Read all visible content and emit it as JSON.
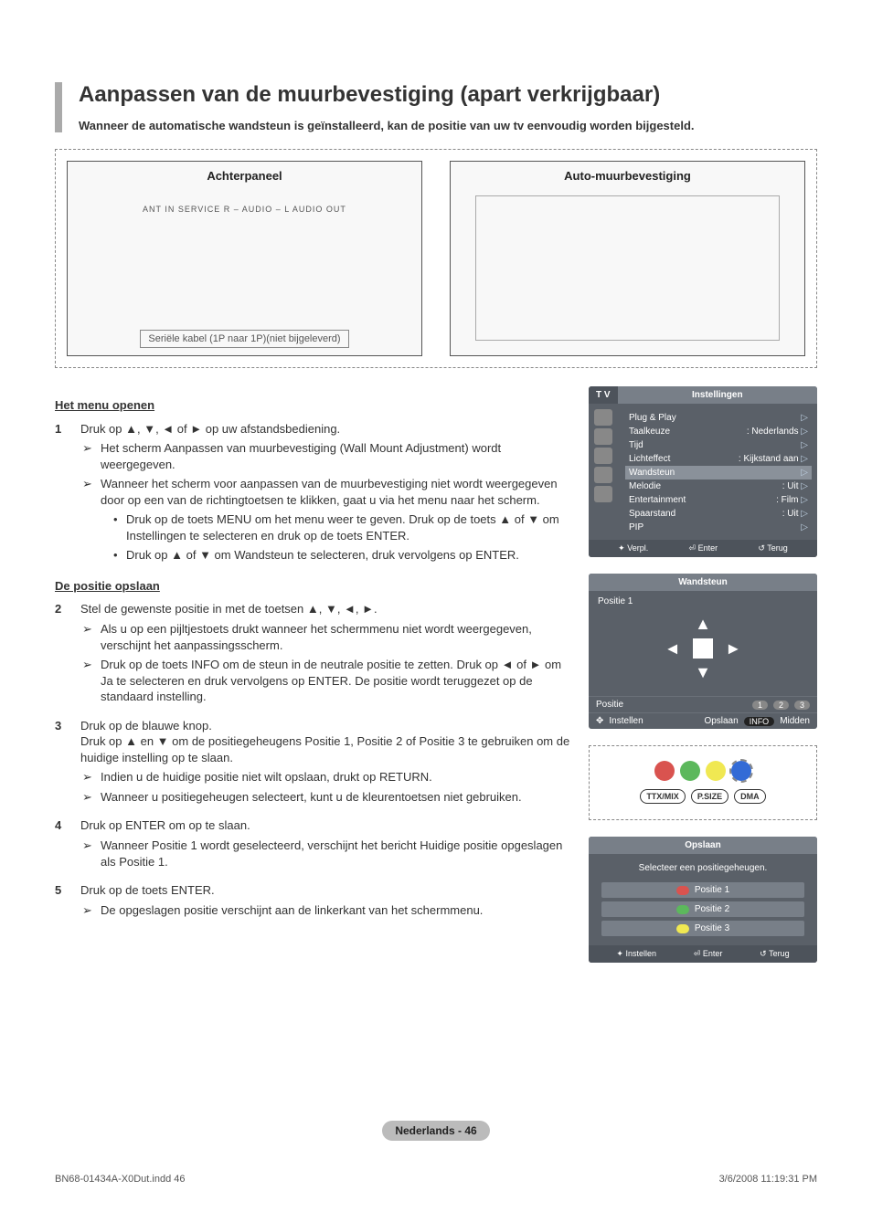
{
  "title": "Aanpassen van de muurbevestiging (apart verkrijgbaar)",
  "subtitle": "Wanneer de automatische wandsteun is geïnstalleerd, kan de positie van uw tv eenvoudig worden bijgesteld.",
  "diagram": {
    "left_label": "Achterpaneel",
    "left_ports": "ANT IN   SERVICE   R – AUDIO – L   AUDIO OUT",
    "right_label": "Auto-muurbevestiging",
    "cable_note": "Seriële kabel (1P naar 1P)(niet bijgeleverd)"
  },
  "sec1_hdr": "Het menu openen",
  "step1": {
    "num": "1",
    "text": "Druk op ▲, ▼, ◄ of ► op uw afstandsbediening.",
    "sub1": "Het scherm Aanpassen van muurbevestiging (Wall Mount Adjustment) wordt weergegeven.",
    "sub2": "Wanneer het scherm voor aanpassen van de muurbevestiging niet wordt weergegeven door op een van de richtingtoetsen te klikken, gaat u via het menu naar het scherm.",
    "b1": "Druk op de toets MENU om het menu weer te geven. Druk op de toets ▲ of ▼ om Instellingen te selecteren en druk op de toets ENTER.",
    "b2": "Druk op ▲ of ▼ om Wandsteun te selecteren, druk vervolgens op ENTER."
  },
  "sec2_hdr": "De positie opslaan",
  "step2": {
    "num": "2",
    "text": "Stel de gewenste positie in met de toetsen ▲, ▼, ◄, ►.",
    "sub1": "Als u op een pijltjestoets drukt wanneer het schermmenu niet wordt weergegeven, verschijnt het aanpassingsscherm.",
    "sub2": "Druk op de toets INFO om de steun in de neutrale positie te zetten. Druk op ◄ of ► om Ja te selecteren en druk vervolgens op ENTER. De positie wordt teruggezet op de standaard instelling."
  },
  "step3": {
    "num": "3",
    "text": "Druk op de blauwe knop.\nDruk op ▲ en ▼ om de positiegeheugens Positie 1, Positie 2 of Positie 3 te gebruiken om de huidige instelling op te slaan.",
    "sub1": "Indien u de huidige positie niet wilt opslaan, drukt op RETURN.",
    "sub2": "Wanneer u positiegeheugen selecteert, kunt u de kleurentoetsen niet gebruiken."
  },
  "step4": {
    "num": "4",
    "text": "Druk op ENTER om op te slaan.",
    "sub1": "Wanneer Positie 1 wordt geselecteerd, verschijnt het bericht Huidige positie opgeslagen als Positie 1."
  },
  "step5": {
    "num": "5",
    "text": "Druk op de toets ENTER.",
    "sub1": "De opgeslagen positie verschijnt aan de linkerkant van het schermmenu."
  },
  "osd1": {
    "tv": "T V",
    "title": "Instellingen",
    "rows": [
      {
        "l": "Plug & Play",
        "r": ""
      },
      {
        "l": "Taalkeuze",
        "r": ": Nederlands"
      },
      {
        "l": "Tijd",
        "r": ""
      },
      {
        "l": "Lichteffect",
        "r": ": Kijkstand aan"
      },
      {
        "l": "Wandsteun",
        "r": "",
        "hl": true
      },
      {
        "l": "Melodie",
        "r": ": Uit"
      },
      {
        "l": "Entertainment",
        "r": ": Film"
      },
      {
        "l": "Spaarstand",
        "r": ": Uit"
      },
      {
        "l": "PIP",
        "r": ""
      }
    ],
    "footer": [
      "Verpl.",
      "Enter",
      "Terug"
    ]
  },
  "osd2": {
    "title": "Wandsteun",
    "pos_label": "Positie 1",
    "row1": {
      "l": "Positie",
      "n1": "1",
      "n2": "2",
      "n3": "3"
    },
    "row2": {
      "l": "Instellen",
      "m": "Opslaan",
      "r": "Midden",
      "info": "INFO"
    }
  },
  "remote": {
    "colors": [
      "#d9534f",
      "#5cb85c",
      "#f0e852",
      "#336bd6"
    ],
    "pills": [
      "TTX/MIX",
      "P.SIZE",
      "DMA"
    ]
  },
  "osd3": {
    "title": "Opslaan",
    "msg": "Selecteer een positiegeheugen.",
    "p1": "Positie 1",
    "p2": "Positie 2",
    "p3": "Positie 3",
    "colors": [
      "#d9534f",
      "#5cb85c",
      "#f0e852"
    ],
    "footer": [
      "Instellen",
      "Enter",
      "Terug"
    ]
  },
  "page_tag": "Nederlands - 46",
  "footer_left": "BN68-01434A-X0Dut.indd   46",
  "footer_right": "3/6/2008   11:19:31 PM"
}
